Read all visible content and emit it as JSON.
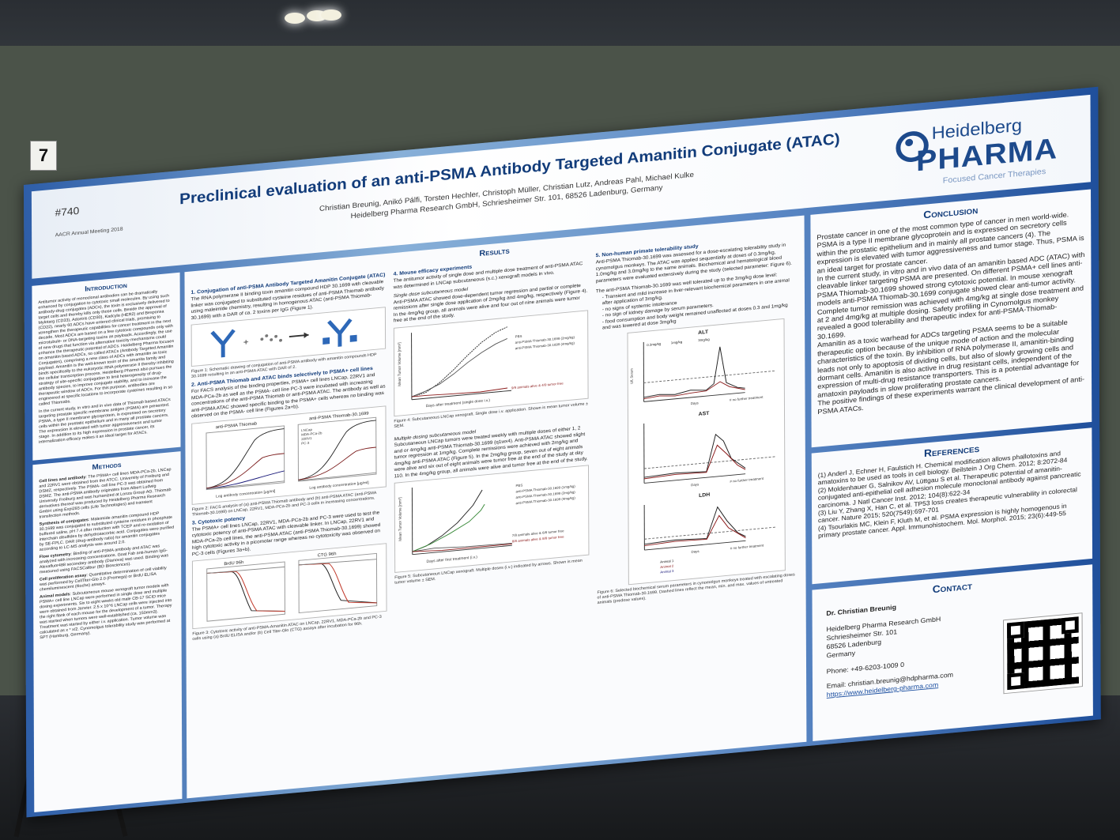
{
  "booth": {
    "number": "7"
  },
  "poster": {
    "abstract_number": "#740",
    "meeting": "AACR Annual Meeting 2018",
    "title": "Preclinical evaluation of an anti-PSMA Antibody Targeted Amanitin Conjugate (ATAC)",
    "authors": "Christian Breunig, Anikó Pálfi, Torsten Hechler, Christoph Müller, Christian Lutz, Andreas Pahl, Michael Kulke",
    "affiliation": "Heidelberg Pharma Research GmbH, Schriesheimer Str. 101, 68526 Ladenburg, Germany",
    "logo": {
      "line1": "Heidelberg",
      "line2": "PHARMA",
      "tagline": "Focused Cancer Therapies"
    },
    "introduction": {
      "title": "Introduction",
      "text": "Antitumor activity of monoclonal antibodies can be dramatically enhanced by conjugation to cytotoxic small molecules. By using such antibody-drug conjugates (ADCs), the toxin is exclusively delivered to target cells and thereby kills only those cells. Beside the approval of Mylotarg (CD33), Adcetris (CD30), Kadcyla (HER2) and Besponsa (CD22), nearly 60 ADCs have entered clinical trials, promising to strengthen the therapeutic capabilities for cancer treatment in the next decade. Most ADCs are based on a few cytotoxic compounds only with microtubule- or DNA-targeting toxins as payloads. Accordingly, the use of new drugs that function via alternative toxicity mechanisms could enhance the therapeutic potential of ADCs. Heidelberg Pharma focuses on amanitin based ADCs, so called ATACs (Antibody Targeted Amanitin Conjugates), comprising a new class of ADCs with amanitin as toxic payload. Amanitin is the well-known toxin of the amanita family and binds specifically to the eukaryotic RNA polymerase II thereby inhibiting the cellular transcription process. Heidelberg Pharma also pursues the strategy of site-specific conjugation to limit heterogeneity of drug-antibody species, to improve conjugate stability, and to increase the therapeutic window of ADCs. For this purpose, antibodies are engineered at specific locations to incorporate cysteines resulting in so called Thiomabs.",
      "text2": "In the current study, in vitro and in vivo data of Thiomab based ATACs targeting prostate specific membrane antigen (PSMA) are presented. PSMA, a type II membrane glycoprotein, is expressed on secretory cells within the prostatic epithelium and in many all prostate cancers. The expression is elevated with tumor aggressiveness and tumor stage. In addition to its high expression in prostate cancer, its internalization efficacy makes it an ideal target for ATACs."
    },
    "methods": {
      "title": "Methods",
      "items": [
        {
          "head": "Cell lines and antibody",
          "text": "The PSMA+ cell lines MDA-PCa-2b, LNCap and 22RV1 were obtained from the ATCC. University of Freiburg and DSMZ, respectively. The PSMA- cell line PC-3 was obtained from DSMZ. The anti-PSMA antibody originates from Albert Ludwig University Freiburg and was humanized at Lonza Group AG. Thiomab derivatives thereof was produced by Heidelberg Pharma Research GmbH using Expi293 cells (Life Technologies) and transient transfection methods."
        },
        {
          "head": "Synthesis of conjugates",
          "text": "Maleimide amanitin compound HDP 30.1699 was conjugated to substituted cysteine residues in phosphate buffered saline, pH 7.4 after reduction with TCEP and re-oxidation of interchain disulfides by dehydroascorbic acid. Conjugates were purified by SE-FPLC. DAR (drug-antibody ratio) for amanitin conjugates according to LC-MS analysis was around 2.0."
        },
        {
          "head": "Flow cytometry",
          "text": "Binding of anti-PSMA antibody and ATAC was analyzed with increasing concentrations. Goat Fab anti-human IgG-Alexafluor488 secondary antibody (Dianova) was used. Binding was measured using FACSCalibur (BD Biosciences)."
        },
        {
          "head": "Cell proliferation assay",
          "text": "Quantitative determination of cell viability was performed by CellTiter-Glo 2.0 (Promega) or BrdU ELISA chemiluminescent (Roche) assays."
        },
        {
          "head": "Animal models",
          "text": "Subcutaneous mouse xenograft tumor models with PSMA+ cell line LNCap were performed in single dose and multiple dosing experiments. Six to eight weeks old male CB-17 SCID mice were obtained from Janvier. 2.5 x 10^6 LNCap cells were injected into the right flank of each mouse for the development of a tumor. Therapy was started when tumors were well-established (ca. 150mm3). Treatment was started by either i.v. application. Tumor volume was calculated as x * x/2. Cynomolgus tolerability study was performed at SPT (Hamburg, Germany)."
        }
      ]
    },
    "results_title": "Results",
    "section1": {
      "title": "1. Conjugation of anti-PSMA Antibody Targeted Amanitin Conjugate (ATAC)",
      "text": "The RNA polymerase II binding toxin amanitin compound HDP 30.1699 with cleavable linker was conjugated to substituted cysteine residues of anti-PSMA Thiomab antibody using maleimide chemistry, resulting in homogenous ATAC (anti-PSMA Thiomab-30.1699) with a DAR of ca. 2 toxins per IgG (Figure 1).",
      "caption": "Figure 1: Schematic drawing of conjugation of anti-PSMA antibody with amanitin compounds HDP 30.1699 resulting in an anti-PSMA ATAC with DAR of 2."
    },
    "section2": {
      "title": "2. Anti-PSMA Thiomab and ATAC binds selectively to PSMA+ cell lines",
      "text": "For FACS analysis of the binding properties, PSMA+ cell lines LNCap, 22RV1 and MDA-PCa-2b as well as the PSMA- cell line PC-3 were incubated with increasing concentrations of the anti-PSMA Thiomab or anti-PSMA ATAC. The antibody as well as anti-PSMA ATAC showed specific binding to the PSMA+ cells whereas no binding was observed on the PSMA- cell line (Figures 2a+b).",
      "fig_a_title": "anti-PSMA Thiomab",
      "fig_b_title": "anti-PSMA Thiomab-30.1699",
      "xlabel": "Log antibody concentration [µg/ml]",
      "legend": [
        "LNCap",
        "MDA-PCa-2b",
        "22RV1",
        "PC-3"
      ],
      "caption": "Figure 2: FACS analysis of (a) anti-PSMA Thiomab antibody and (b) anti-PSMA ATAC (anti-PSMA Thiomab-30.1699) on LNCap, 22RV1, MDA-PCa-2b and PC-3 cells in increasing concentrations."
    },
    "section3": {
      "title": "3. Cytotoxic potency",
      "text": "The PSMA+ cell lines LNCap, 22RV1, MDA-PCa-2b and PC-3 were used to test the cytotoxic potency of anti-PSMA ATAC with cleavable linker. In LNCap, 22RV1 and MDA-PCa-2b cell lines, the anti-PSMA ATAC (anti-PSMA Thiomab-30.1699) showed high cytotoxic activity in a picomolar range whereas no cytotoxicity was observed on PC-3 cells (Figures 3a+b).",
      "fig_a_title": "BrdU 96h",
      "fig_b_title": "CTG 96h",
      "caption": "Figure 3: Cytotoxic activity of anti-PSMA-Amanitin ATAC on LNCap, 22RV1, MDA-PCa-2b and PC-3 cells using (a) BrdU ELISA and/or (b) Cell Titer-Glo (CTG) assays after incubation for 96h."
    },
    "section4": {
      "title": "4. Mouse efficacy experiments",
      "intro": "The antitumor activity of single dose and multiple dose treatment of anti-PSMA ATAC was determined in LNCap subcutaneous (s.c.) xenograft models in vivo.",
      "sub1": "Single dose subcutaneous model",
      "text1": "Anti-PSMA ATAC showed dose-dependent tumor regression and partial or complete remissions after single dose application of 2mg/kg and 4mg/kg, respectively (Figure 4). In the 4mg/kg group, all animals were alive and four out of nine animals were tumor free at the end of the study.",
      "fig4_ylabel": "Mean Tumor Volume [mm³]",
      "fig4_xlabel": "Days after treatment (single dose i.v.)",
      "fig4_legend": [
        "PBS",
        "anti-PSMA Thiomab-30.1699 (2mg/kg)",
        "anti-PSMA Thiomab-30.1699 (4mg/kg)"
      ],
      "fig4_note": "9/9 animals alive & 4/9 tumor free",
      "caption4": "Figure 4: Subcutaneous LNCap xenograft. Single dose i.v. application. Shown is mean tumor volume ± SEM.",
      "sub2": "Multiple dosing subcutaneous model",
      "text2": "Subcutaneous LNCap tumors were treated weekly with multiple doses of either 1, 2 and or 4mg/kg anti-PSMA Thiomab-30.1699 (q1wx4). Anti-PSMA ATAC showed slight tumor regression at 1mg/kg. Complete remissions were achieved with 2mg/kg and 4mg/kg anti-PSMA ATAC (Figure 5). In the 2mg/kg group, seven out of eight animals were alive and six out of eight animals were tumor free at the end of the study at day 110. In the 4mg/kg group, all animals were alive and tumor free at the end of the study.",
      "fig5_ylabel": "Mean Tumor Volume [mm³]",
      "fig5_xlabel": "Days after first treatment (i.v.)",
      "fig5_legend": [
        "PBS",
        "anti-PSMA Thiomab-30.1699 (1mg/kg)",
        "anti-PSMA Thiomab-30.1699 (2mg/kg)",
        "anti-PSMA Thiomab-30.1699 (4mg/kg)"
      ],
      "fig5_note1": "7/8 animals alive & 6/8 tumor free",
      "fig5_note2": "8/8 animals alive & 8/8 tumor free",
      "caption5": "Figure 5: Subcutaneous LNCap xenograft. Multiple doses (i.v.) indicated by arrows. Shown is mean tumor volume ± SEM."
    },
    "section5": {
      "title": "5. Non-human primate tolerability study",
      "text": "Anti-PSMA Thiomab-30.1699 was assessed for a dose-escalating tolerability study in cynomolgus monkeys. The ATAC was applied sequentially at doses of 0.3mg/kg, 1.0mg/kg and 3.0mg/kg to the same animals. Biochemical and hematological blood parameters were evaluated extensively during the study (selected parameter: Figure 6).",
      "text2": "The anti-PSMA Thiomab-30.1699 was well tolerated up to the 3mg/kg dose level:",
      "bullets": [
        "Transient and mild increase in liver-relevant biochemical parameters in one animal after application of 3mg/kg.",
        "no signs of systemic intolerance",
        "no sign of kidney damage by serum parameters.",
        "food consumption and body weight remained unaffected at doses 0.3 and 1mg/kg and was lowered at dose 3mg/kg"
      ],
      "charts": [
        "ALT",
        "AST",
        "LDH"
      ],
      "doses": [
        "0.3mg/kg",
        "1mg/kg",
        "3mg/kg"
      ],
      "ylabel": "U/L Serum",
      "xlabel": "Days",
      "note": "# no further treatment",
      "legend": [
        "Animal 1",
        "Animal 2",
        "Animal 3"
      ],
      "caption": "Figure 6: Selected biochemical serum parameters in cynomolgus monkeys treated with escalating doses of anti-PSMA Thiomab-30.1699. Dashed lines reflect the mean, min. and max. values of untreated animals (predose values)."
    },
    "conclusion": {
      "title": "Conclusion",
      "text": "Prostate cancer in one of the most common type of cancer in men world-wide. PSMA is a type II membrane glycoprotein and is expressed on secretory cells within the prostatic epithelium and in mainly all prostate cancers (4). The expression is elevated with tumor aggressiveness and tumor stage. Thus, PSMA is an ideal target for prostate cancer.",
      "text2": "In the current study, in vitro and in vivo data of an amanitin based ADC (ATAC) with cleavable linker targeting PSMA are presented. On different PSMA+ cell lines anti-PSMA Thiomab-30.1699 showed strong cytotoxic potential. In mouse xenograft models anti-PSMA Thiomab-30.1699 conjugate showed clear anti-tumor activity. Complete tumor remission was achieved with 4mg/kg at single dose treatment and at 2 and 4mg/kg at multiple dosing. Safety profiling in Cynomolgus monkey revealed a good tolerability and therapeutic index for anti-PSMA-Thiomab-30.1699.",
      "text3": "Amanitin as a toxic warhead for ADCs targeting PSMA seems to be a suitable therapeutic option because of the unique mode of action and the molecular characteristics of the toxin. By inhibition of RNA polymerase II, amanitin-binding leads not only to apoptosis of dividing cells, but also of slowly growing cells and dormant cells. Amanitin is also active in drug resistant cells, independent of the expression of multi-drug resistance transporters. This is a potential advantage for amatoxin payloads in slow proliferating prostate cancers.",
      "text4": "The positive findings of these experiments warrant the clinical development of anti-PSMA ATACs."
    },
    "references": {
      "title": "References",
      "items": [
        "(1) Anderl J, Echner H, Faulstich H. Chemical modification allows phallotoxins and amatoxins to be used as tools in cell biology. Beilstein J Org Chem. 2012; 8:2072-84",
        "(2) Moldenhauer G, Salnikov AV, Lüttgau S et al. Therapeutic potential of amanitin-conjugated anti-epithelial cell adhesion molecule monoclonal antibody against pancreatic carcinoma. J Natl Cancer Inst. 2012; 104(8):622-34",
        "(3) Liu Y, Zhang X, Han C, et al. TP53 loss creates therapeutic vulnerability in colorectal cancer. Nature 2015; 520(7549):697-701",
        "(4) Tsourlakis MC, Klein F, Kluth M, et al. PSMA expression is highly homogenous in primary prostate cancer. Appl. Immunohistochem. Mol. Morphol. 2015; 23(6):449-55"
      ]
    },
    "contact": {
      "title": "Contact",
      "name": "Dr. Christian Breunig",
      "company": "Heidelberg Pharma Research GmbH",
      "street": "Schriesheimer Str. 101",
      "city": "68526 Ladenburg",
      "country": "Germany",
      "phone": "Phone: +49-6203-1009 0",
      "email": "Email: christian.breunig@hdpharma.com",
      "url": "https://www.heidelberg-pharma.com"
    }
  }
}
